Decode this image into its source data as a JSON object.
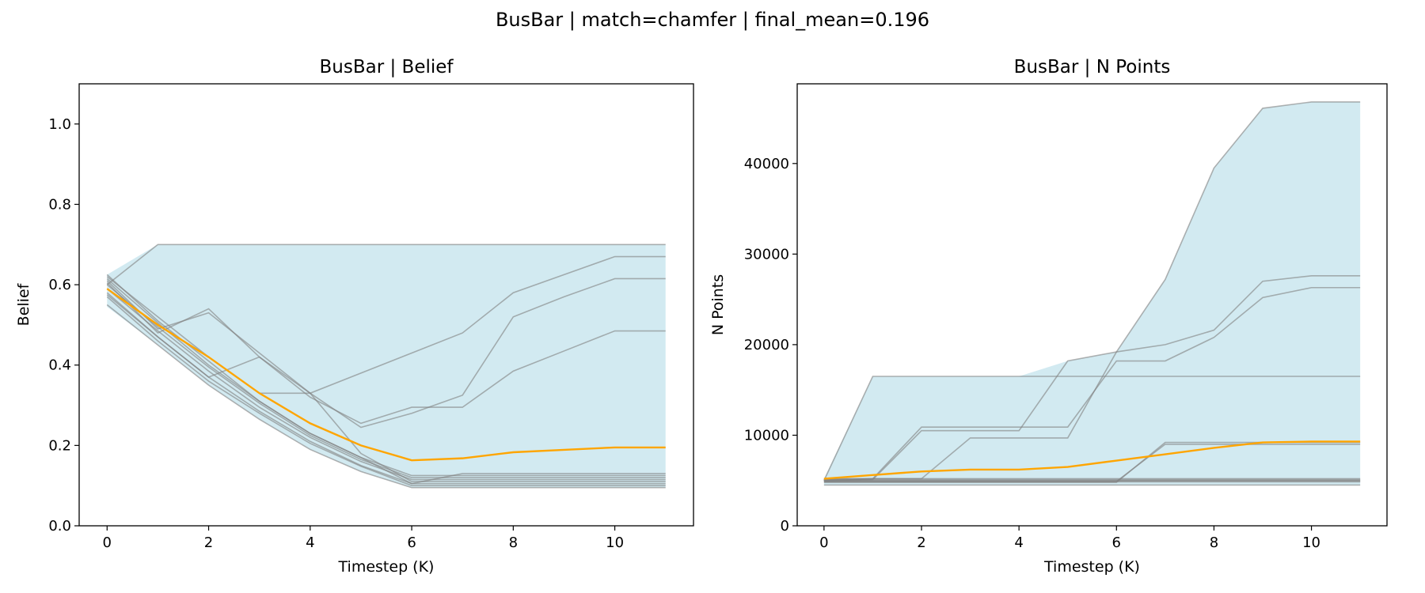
{
  "figure": {
    "suptitle": "BusBar | match=chamfer | final_mean=0.196"
  },
  "colors": {
    "band": "#add8e6",
    "runs": "#808080",
    "mean": "#ffa500",
    "axes": "#000000"
  },
  "chart_data": [
    {
      "type": "line",
      "title": "BusBar | Belief",
      "xlabel": "Timestep (K)",
      "ylabel": "Belief",
      "xlim": [
        -0.55,
        11.55
      ],
      "ylim": [
        0.0,
        1.1
      ],
      "xticks": [
        0,
        2,
        4,
        6,
        8,
        10
      ],
      "yticks": [
        0.0,
        0.2,
        0.4,
        0.6,
        0.8,
        1.0
      ],
      "ytick_labels": [
        "0.0",
        "0.2",
        "0.4",
        "0.6",
        "0.8",
        "1.0"
      ],
      "grid": false,
      "x": [
        0,
        1,
        2,
        3,
        4,
        5,
        6,
        7,
        8,
        9,
        10,
        11
      ],
      "band": {
        "upper": [
          0.625,
          0.7,
          0.7,
          0.7,
          0.7,
          0.7,
          0.7,
          0.7,
          0.7,
          0.7,
          0.7,
          0.7
        ],
        "lower": [
          0.545,
          0.45,
          0.35,
          0.265,
          0.19,
          0.135,
          0.095,
          0.095,
          0.095,
          0.095,
          0.095,
          0.095
        ]
      },
      "runs": [
        [
          0.6,
          0.7,
          0.7,
          0.7,
          0.7,
          0.7,
          0.7,
          0.7,
          0.7,
          0.7,
          0.7,
          0.7
        ],
        [
          0.62,
          0.52,
          0.42,
          0.33,
          0.33,
          0.38,
          0.43,
          0.48,
          0.58,
          0.625,
          0.67,
          0.67
        ],
        [
          0.61,
          0.49,
          0.53,
          0.43,
          0.33,
          0.245,
          0.28,
          0.325,
          0.52,
          0.57,
          0.615,
          0.615
        ],
        [
          0.605,
          0.48,
          0.54,
          0.42,
          0.32,
          0.255,
          0.295,
          0.295,
          0.385,
          0.435,
          0.485,
          0.485
        ],
        [
          0.58,
          0.47,
          0.37,
          0.42,
          0.33,
          0.18,
          0.11,
          0.11,
          0.11,
          0.11,
          0.11,
          0.11
        ],
        [
          0.625,
          0.51,
          0.41,
          0.31,
          0.23,
          0.17,
          0.105,
          0.13,
          0.13,
          0.13,
          0.13,
          0.13
        ],
        [
          0.57,
          0.46,
          0.36,
          0.28,
          0.205,
          0.148,
          0.1,
          0.1,
          0.1,
          0.1,
          0.1,
          0.1
        ],
        [
          0.55,
          0.45,
          0.35,
          0.265,
          0.19,
          0.135,
          0.095,
          0.095,
          0.095,
          0.095,
          0.095,
          0.095
        ],
        [
          0.59,
          0.485,
          0.385,
          0.295,
          0.22,
          0.16,
          0.115,
          0.115,
          0.115,
          0.115,
          0.115,
          0.115
        ],
        [
          0.6,
          0.495,
          0.395,
          0.305,
          0.225,
          0.165,
          0.12,
          0.12,
          0.12,
          0.12,
          0.12,
          0.12
        ],
        [
          0.575,
          0.47,
          0.37,
          0.285,
          0.21,
          0.15,
          0.105,
          0.105,
          0.105,
          0.105,
          0.105,
          0.105
        ],
        [
          0.615,
          0.505,
          0.4,
          0.31,
          0.23,
          0.17,
          0.125,
          0.125,
          0.125,
          0.125,
          0.125,
          0.125
        ]
      ],
      "mean": [
        0.59,
        0.5,
        0.42,
        0.33,
        0.255,
        0.2,
        0.163,
        0.168,
        0.183,
        0.189,
        0.195,
        0.195
      ]
    },
    {
      "type": "line",
      "title": "BusBar | N Points",
      "xlabel": "Timestep (K)",
      "ylabel": "N Points",
      "xlim": [
        -0.55,
        11.55
      ],
      "ylim": [
        0,
        48800
      ],
      "xticks": [
        0,
        2,
        4,
        6,
        8,
        10
      ],
      "yticks": [
        0,
        10000,
        20000,
        30000,
        40000
      ],
      "ytick_labels": [
        "0",
        "10000",
        "20000",
        "30000",
        "40000"
      ],
      "grid": false,
      "x": [
        0,
        1,
        2,
        3,
        4,
        5,
        6,
        7,
        8,
        9,
        10,
        11
      ],
      "band": {
        "upper": [
          5200,
          16500,
          16500,
          16500,
          16500,
          18200,
          19200,
          27200,
          39500,
          46100,
          46800,
          46800
        ],
        "lower": [
          4500,
          4500,
          4500,
          4500,
          4500,
          4500,
          4500,
          4500,
          4500,
          4500,
          4500,
          4500
        ]
      },
      "runs": [
        [
          5000,
          16500,
          16500,
          16500,
          16500,
          16500,
          16500,
          16500,
          16500,
          16500,
          16500,
          16500
        ],
        [
          5100,
          5200,
          5200,
          9700,
          9700,
          9700,
          19200,
          27200,
          39500,
          46100,
          46800,
          46800
        ],
        [
          4900,
          5100,
          10500,
          10500,
          10500,
          18200,
          19200,
          20000,
          21600,
          27000,
          27600,
          27600
        ],
        [
          5000,
          5200,
          10900,
          10900,
          10900,
          10900,
          18200,
          18200,
          20800,
          25200,
          26300,
          26300
        ],
        [
          4800,
          4800,
          4800,
          4800,
          4800,
          4800,
          4800,
          9200,
          9200,
          9200,
          9200,
          9200
        ],
        [
          4900,
          4900,
          4900,
          4900,
          4900,
          4900,
          4900,
          9000,
          9000,
          9000,
          9000,
          9000
        ],
        [
          4500,
          4500,
          4500,
          4500,
          4500,
          4500,
          4500,
          4500,
          4500,
          4500,
          4500,
          4500
        ],
        [
          5000,
          5000,
          5000,
          5000,
          5000,
          5000,
          5000,
          5000,
          5000,
          5000,
          5000,
          5000
        ],
        [
          5100,
          5100,
          5100,
          5100,
          5100,
          5100,
          5100,
          5100,
          5100,
          5100,
          5100,
          5100
        ],
        [
          5200,
          5200,
          5200,
          5200,
          5200,
          5200,
          5200,
          5200,
          5200,
          5200,
          5200,
          5200
        ],
        [
          4950,
          4950,
          4950,
          4950,
          4950,
          4950,
          4950,
          4950,
          4950,
          4950,
          4950,
          4950
        ],
        [
          4850,
          4850,
          4850,
          4850,
          4850,
          4850,
          4850,
          4850,
          4850,
          4850,
          4850,
          4850
        ]
      ],
      "mean": [
        5200,
        5600,
        6000,
        6200,
        6200,
        6500,
        7200,
        7900,
        8600,
        9200,
        9300,
        9300
      ]
    }
  ]
}
